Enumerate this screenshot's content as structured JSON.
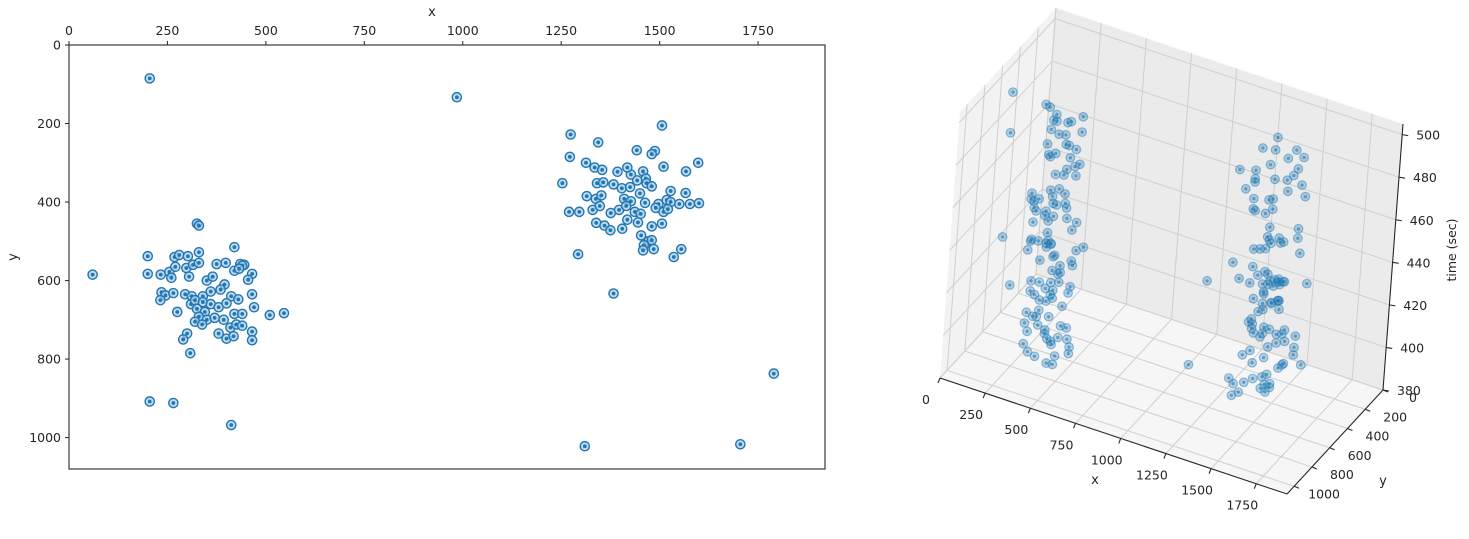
{
  "chart_data": [
    {
      "type": "scatter",
      "title": "",
      "xlabel": "x",
      "ylabel": "y",
      "xlim": [
        0,
        1920
      ],
      "ylim": [
        1080,
        0
      ],
      "x_axis_position": "top",
      "y_inverted": true,
      "xticks": [
        0,
        250,
        500,
        750,
        1000,
        1250,
        1500,
        1750
      ],
      "yticks": [
        0,
        200,
        400,
        600,
        800,
        1000
      ],
      "grid": false,
      "legend": null,
      "marker": "double-circle",
      "color": "#1f77b4",
      "points": [
        [
          205,
          85
        ],
        [
          985,
          133
        ],
        [
          1506,
          205
        ],
        [
          1274,
          228
        ],
        [
          1344,
          248
        ],
        [
          1272,
          285
        ],
        [
          1313,
          300
        ],
        [
          1442,
          268
        ],
        [
          1488,
          270
        ],
        [
          1480,
          278
        ],
        [
          1598,
          300
        ],
        [
          1335,
          312
        ],
        [
          1354,
          318
        ],
        [
          1393,
          323
        ],
        [
          1427,
          330
        ],
        [
          1418,
          312
        ],
        [
          1458,
          322
        ],
        [
          1465,
          340
        ],
        [
          1510,
          310
        ],
        [
          1567,
          322
        ],
        [
          1253,
          352
        ],
        [
          1341,
          352
        ],
        [
          1357,
          350
        ],
        [
          1383,
          355
        ],
        [
          1404,
          365
        ],
        [
          1425,
          362
        ],
        [
          1443,
          345
        ],
        [
          1467,
          352
        ],
        [
          1480,
          360
        ],
        [
          1528,
          372
        ],
        [
          1566,
          377
        ],
        [
          1315,
          385
        ],
        [
          1338,
          392
        ],
        [
          1352,
          383
        ],
        [
          1410,
          392
        ],
        [
          1427,
          398
        ],
        [
          1450,
          378
        ],
        [
          1463,
          402
        ],
        [
          1497,
          405
        ],
        [
          1518,
          395
        ],
        [
          1528,
          400
        ],
        [
          1550,
          405
        ],
        [
          1577,
          405
        ],
        [
          1600,
          403
        ],
        [
          1270,
          425
        ],
        [
          1296,
          425
        ],
        [
          1330,
          420
        ],
        [
          1348,
          410
        ],
        [
          1376,
          428
        ],
        [
          1397,
          420
        ],
        [
          1415,
          410
        ],
        [
          1437,
          425
        ],
        [
          1452,
          430
        ],
        [
          1490,
          415
        ],
        [
          1510,
          425
        ],
        [
          1521,
          418
        ],
        [
          1339,
          453
        ],
        [
          1360,
          460
        ],
        [
          1418,
          445
        ],
        [
          1445,
          452
        ],
        [
          1480,
          462
        ],
        [
          1506,
          455
        ],
        [
          1375,
          472
        ],
        [
          1405,
          468
        ],
        [
          1453,
          485
        ],
        [
          1472,
          500
        ],
        [
          1480,
          497
        ],
        [
          1485,
          520
        ],
        [
          1460,
          510
        ],
        [
          1555,
          520
        ],
        [
          1536,
          540
        ],
        [
          1293,
          533
        ],
        [
          1458,
          523
        ],
        [
          1383,
          633
        ],
        [
          325,
          455
        ],
        [
          330,
          460
        ],
        [
          200,
          538
        ],
        [
          268,
          540
        ],
        [
          280,
          535
        ],
        [
          302,
          538
        ],
        [
          330,
          528
        ],
        [
          420,
          515
        ],
        [
          233,
          585
        ],
        [
          255,
          578
        ],
        [
          270,
          565
        ],
        [
          298,
          568
        ],
        [
          315,
          560
        ],
        [
          330,
          555
        ],
        [
          375,
          558
        ],
        [
          398,
          555
        ],
        [
          435,
          558
        ],
        [
          445,
          560
        ],
        [
          465,
          583
        ],
        [
          440,
          562
        ],
        [
          200,
          583
        ],
        [
          260,
          593
        ],
        [
          305,
          590
        ],
        [
          350,
          600
        ],
        [
          365,
          590
        ],
        [
          395,
          610
        ],
        [
          420,
          575
        ],
        [
          432,
          570
        ],
        [
          455,
          598
        ],
        [
          60,
          585
        ],
        [
          235,
          630
        ],
        [
          245,
          638
        ],
        [
          265,
          632
        ],
        [
          295,
          635
        ],
        [
          312,
          640
        ],
        [
          340,
          640
        ],
        [
          360,
          628
        ],
        [
          385,
          623
        ],
        [
          412,
          640
        ],
        [
          430,
          648
        ],
        [
          465,
          635
        ],
        [
          470,
          668
        ],
        [
          232,
          650
        ],
        [
          310,
          660
        ],
        [
          320,
          650
        ],
        [
          340,
          655
        ],
        [
          360,
          660
        ],
        [
          380,
          668
        ],
        [
          400,
          658
        ],
        [
          420,
          685
        ],
        [
          440,
          685
        ],
        [
          510,
          688
        ],
        [
          546,
          683
        ],
        [
          275,
          680
        ],
        [
          325,
          672
        ],
        [
          345,
          680
        ],
        [
          330,
          692
        ],
        [
          350,
          700
        ],
        [
          370,
          695
        ],
        [
          393,
          700
        ],
        [
          410,
          720
        ],
        [
          425,
          712
        ],
        [
          440,
          715
        ],
        [
          320,
          705
        ],
        [
          338,
          712
        ],
        [
          300,
          735
        ],
        [
          290,
          750
        ],
        [
          380,
          735
        ],
        [
          400,
          748
        ],
        [
          418,
          742
        ],
        [
          465,
          730
        ],
        [
          465,
          752
        ],
        [
          308,
          785
        ],
        [
          205,
          908
        ],
        [
          265,
          912
        ],
        [
          412,
          968
        ],
        [
          1310,
          1022
        ],
        [
          1705,
          1017
        ],
        [
          1790,
          837
        ]
      ]
    },
    {
      "type": "scatter",
      "projection": "3d",
      "title": "",
      "xlabel": "x",
      "ylabel": "y",
      "zlabel": "time (sec)",
      "xticks": [
        0,
        250,
        500,
        750,
        1000,
        1250,
        1500,
        1750
      ],
      "yticks": [
        0,
        200,
        400,
        600,
        800,
        1000
      ],
      "zticks": [
        380,
        400,
        420,
        440,
        460,
        480,
        500
      ],
      "zlim": [
        380,
        505
      ],
      "grid": true,
      "color": "#1f77b4",
      "alpha": 0.4,
      "description": "Two vertical columns of points over time corresponding to the two 2D clusters (x≈350,y≈640 and x≈1430,y≈400) spanning time 380–500, plus a few isolated outliers."
    }
  ]
}
